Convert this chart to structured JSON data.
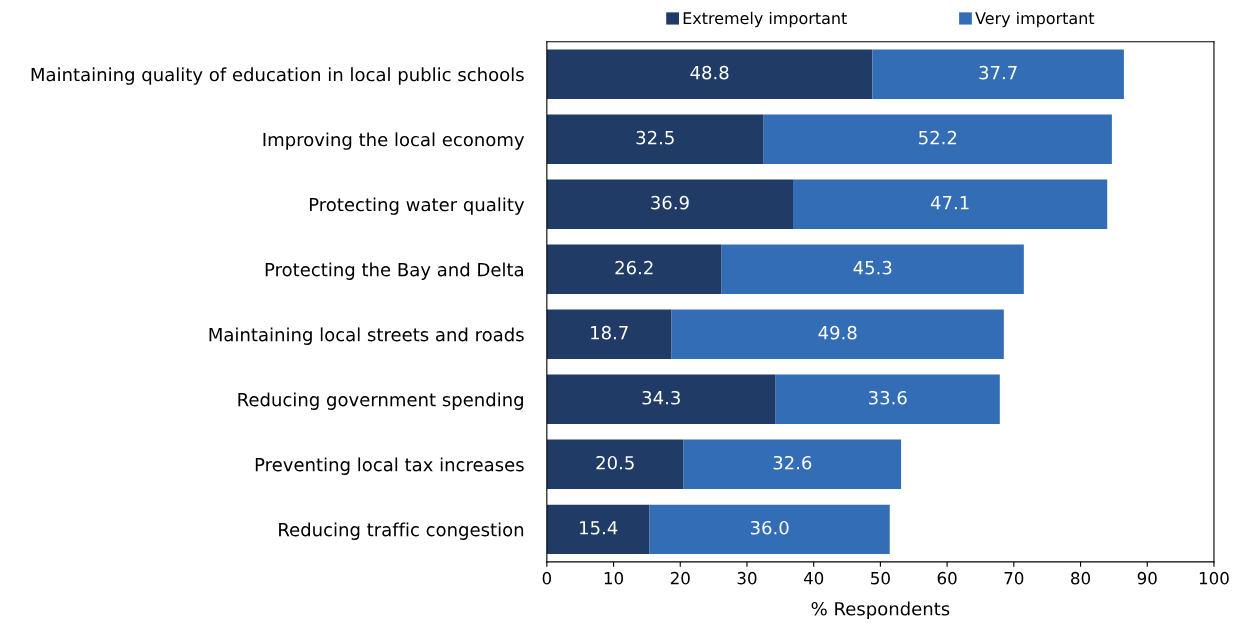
{
  "chart_data": {
    "type": "bar",
    "orientation": "horizontal",
    "stacked": true,
    "xlabel": "% Respondents",
    "categories": [
      "Maintaining quality of education in local public schools",
      "Improving the local economy",
      "Protecting water quality",
      "Protecting the Bay and Delta",
      "Maintaining local streets and roads",
      "Reducing government spending",
      "Preventing local tax increases",
      "Reducing traffic congestion"
    ],
    "series": [
      {
        "name": "Extremely important",
        "color": "#1f3b66",
        "values": [
          48.8,
          32.5,
          36.9,
          26.2,
          18.7,
          34.3,
          20.5,
          15.4
        ],
        "value_labels": [
          "48.8",
          "32.5",
          "36.9",
          "26.2",
          "18.7",
          "34.3",
          "20.5",
          "15.4"
        ]
      },
      {
        "name": "Very important",
        "color": "#336db5",
        "values": [
          37.7,
          52.2,
          47.1,
          45.3,
          49.8,
          33.6,
          32.6,
          36.0
        ],
        "value_labels": [
          "37.7",
          "52.2",
          "47.1",
          "45.3",
          "49.8",
          "33.6",
          "32.6",
          "36.0"
        ]
      }
    ],
    "xlim": [
      0,
      100
    ],
    "xticks": [
      0,
      10,
      20,
      30,
      40,
      50,
      60,
      70,
      80,
      90,
      100
    ],
    "grid": false,
    "legend": "top"
  }
}
